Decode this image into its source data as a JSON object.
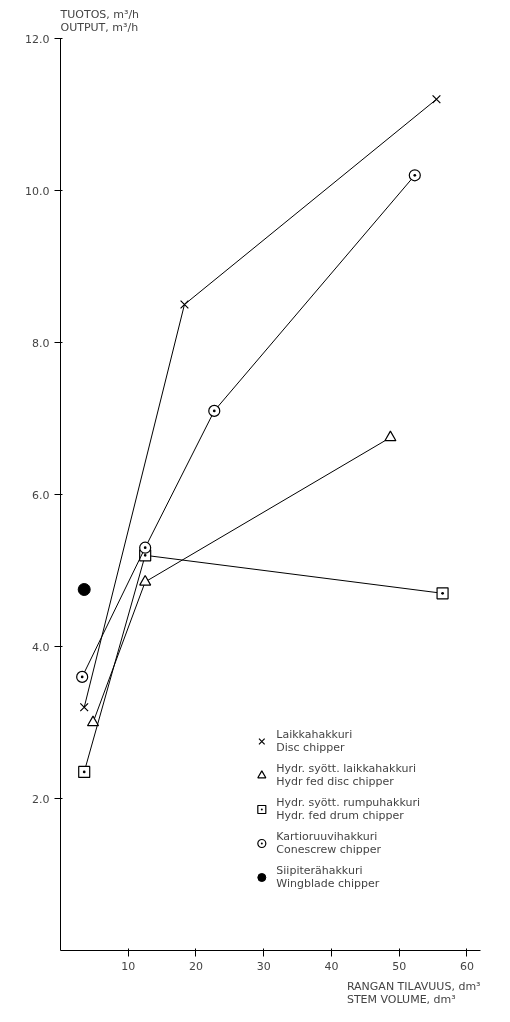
{
  "chart_data": {
    "type": "line",
    "xlabel": "RANGAN TILAVUUS, dm³\nSTEM VOLUME, dm³",
    "ylabel": "TUOTOS, m³/h\nOUTPUT, m³/h",
    "xlim": [
      0,
      62
    ],
    "ylim": [
      0,
      12
    ],
    "xticks": [
      10,
      20,
      30,
      40,
      50,
      60
    ],
    "yticks": [
      {
        "value": 2,
        "label": "2.0"
      },
      {
        "value": 4,
        "label": "4.0"
      },
      {
        "value": 6,
        "label": "6.0"
      },
      {
        "value": 8,
        "label": "8.0"
      },
      {
        "value": 10,
        "label": "10.0"
      },
      {
        "value": 12,
        "label": "12.0"
      }
    ],
    "grid": false,
    "legend": "bottom right",
    "series": [
      {
        "name": "Laikkahakkuri\nDisc chipper",
        "color": "#000000",
        "marker": "cross",
        "x": [
          3.5,
          18.3,
          55.5
        ],
        "values": [
          3.2,
          8.5,
          11.2
        ]
      },
      {
        "name": "Hydr. syött. laikkahakkuri\nHydr fed disc chipper",
        "color": "#000000",
        "marker": "triangle",
        "x": [
          4.8,
          12.5,
          48.7
        ],
        "values": [
          3.0,
          4.85,
          6.75
        ]
      },
      {
        "name": "Hydr. syött. rumpuhakkuri\nHydr. fed drum chipper",
        "color": "#000000",
        "marker": "square",
        "x": [
          3.5,
          12.5,
          56.4
        ],
        "values": [
          2.35,
          5.2,
          4.7
        ]
      },
      {
        "name": "Kartioruuvihakkuri\nConescrew chipper",
        "color": "#000000",
        "marker": "circle",
        "x": [
          3.2,
          12.5,
          22.7,
          52.3
        ],
        "values": [
          3.6,
          5.3,
          7.1,
          10.2
        ]
      },
      {
        "name": "Siipiterähakkuri\nWingblade chipper",
        "type": "scatter",
        "color": "#000000",
        "marker": "circle",
        "x": [
          3.5
        ],
        "values": [
          4.75
        ]
      }
    ]
  }
}
